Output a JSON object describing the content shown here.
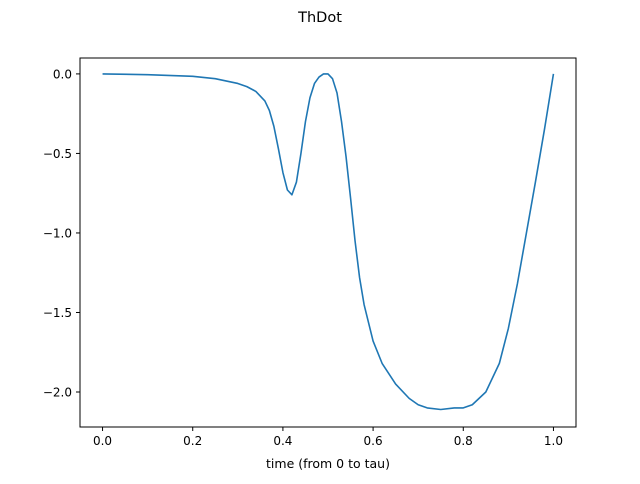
{
  "chart_data": {
    "type": "line",
    "title": "ThDot",
    "xlabel": "time (from 0 to tau)",
    "ylabel": "",
    "xlim": [
      -0.05,
      1.05
    ],
    "ylim": [
      -2.22,
      0.1
    ],
    "xticks": [
      0.0,
      0.2,
      0.4,
      0.6,
      0.8,
      1.0
    ],
    "xtick_labels": [
      "0.0",
      "0.2",
      "0.4",
      "0.6",
      "0.8",
      "1.0"
    ],
    "yticks": [
      0.0,
      -0.5,
      -1.0,
      -1.5,
      -2.0
    ],
    "ytick_labels": [
      "0.0",
      "−0.5",
      "−1.0",
      "−1.5",
      "−2.0"
    ],
    "grid": false,
    "line_color": "#1f77b4",
    "series": [
      {
        "x": [
          0.0,
          0.1,
          0.2,
          0.25,
          0.3,
          0.32,
          0.34,
          0.36,
          0.37,
          0.38,
          0.39,
          0.4,
          0.41,
          0.42,
          0.43,
          0.44,
          0.45,
          0.46,
          0.47,
          0.48,
          0.49,
          0.5,
          0.51,
          0.52,
          0.53,
          0.54,
          0.55,
          0.56,
          0.57,
          0.58,
          0.6,
          0.62,
          0.65,
          0.68,
          0.7,
          0.72,
          0.75,
          0.78,
          0.8,
          0.82,
          0.85,
          0.88,
          0.9,
          0.92,
          0.94,
          0.96,
          0.98,
          1.0
        ],
        "y": [
          0.0,
          -0.005,
          -0.015,
          -0.03,
          -0.06,
          -0.08,
          -0.11,
          -0.17,
          -0.23,
          -0.33,
          -0.47,
          -0.62,
          -0.73,
          -0.76,
          -0.68,
          -0.5,
          -0.3,
          -0.15,
          -0.06,
          -0.02,
          0.0,
          0.0,
          -0.03,
          -0.12,
          -0.3,
          -0.52,
          -0.78,
          -1.05,
          -1.28,
          -1.45,
          -1.68,
          -1.82,
          -1.95,
          -2.04,
          -2.08,
          -2.1,
          -2.11,
          -2.1,
          -2.1,
          -2.08,
          -2.0,
          -1.82,
          -1.6,
          -1.32,
          -1.0,
          -0.68,
          -0.35,
          0.0
        ]
      }
    ]
  }
}
